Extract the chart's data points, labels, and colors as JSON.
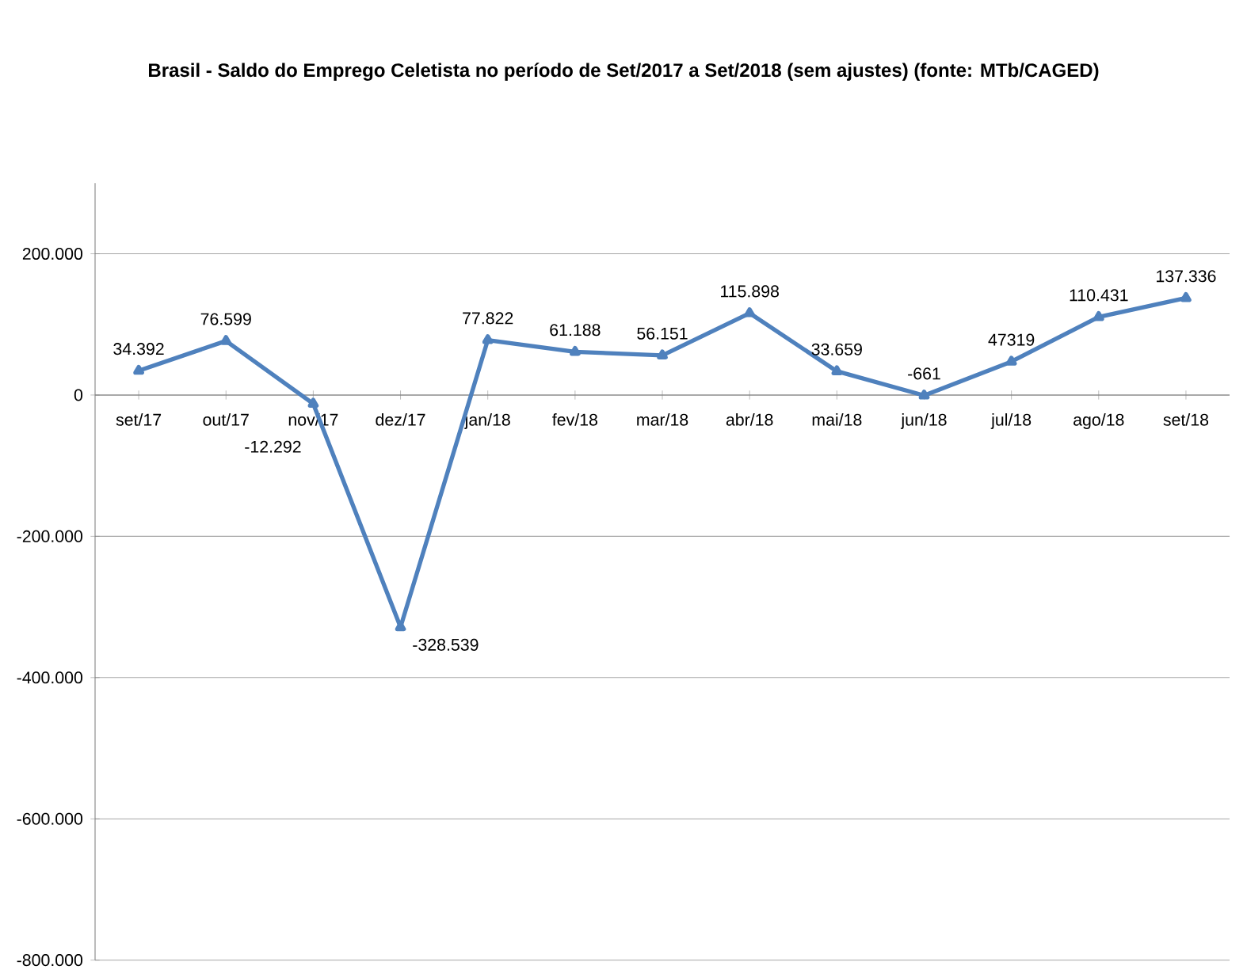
{
  "chart_data": {
    "type": "line",
    "title": "Brasil - Saldo do Emprego Celetista no período de Set/2017 a Set/2018 (sem ajustes) (fonte: MTb/CAGED)",
    "categories": [
      "set/17",
      "out/17",
      "nov/17",
      "dez/17",
      "jan/18",
      "fev/18",
      "mar/18",
      "abr/18",
      "mai/18",
      "jun/18",
      "jul/18",
      "ago/18",
      "set/18"
    ],
    "values": [
      34392,
      76599,
      -12292,
      -328539,
      77822,
      61188,
      56151,
      115898,
      33659,
      -661,
      47319,
      110431,
      137336
    ],
    "value_labels": [
      "34.392",
      "76.599",
      "-12.292",
      "-328.539",
      "77.822",
      "61.188",
      "56.151",
      "115.898",
      "33.659",
      "-661",
      "47319",
      "110.431",
      "137.336"
    ],
    "color": "#4f81bd",
    "marker": "triangle",
    "line_style": "solid",
    "grid": "y",
    "ylim": [
      -800000,
      300000
    ],
    "yticks": [
      {
        "value": -800000,
        "label": "-800.000"
      },
      {
        "value": -600000,
        "label": "-600.000"
      },
      {
        "value": -400000,
        "label": "-400.000"
      },
      {
        "value": -200000,
        "label": "-200.000"
      },
      {
        "value": 0,
        "label": "0"
      },
      {
        "value": 200000,
        "label": "200.000"
      }
    ]
  }
}
